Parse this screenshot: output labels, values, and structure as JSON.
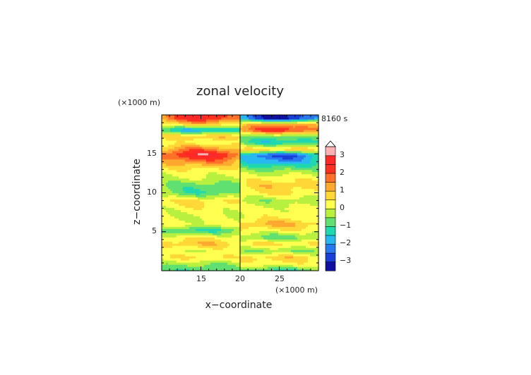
{
  "chart_data": {
    "type": "heatmap",
    "title": "zonal velocity",
    "xlabel": "x−coordinate",
    "ylabel": "z−coordinate",
    "x_unit": "(×1000 m)",
    "y_unit": "(×1000 m)",
    "time_label": "8160 s",
    "xlim": [
      10,
      30
    ],
    "ylim": [
      0,
      20
    ],
    "x_ticks": [
      "15",
      "20",
      "25"
    ],
    "y_ticks": [
      "5",
      "10",
      "15"
    ],
    "colorbar": {
      "levels": [
        -3.5,
        -3.0,
        -2.5,
        -2.0,
        -1.5,
        -1.0,
        -0.5,
        0.0,
        0.5,
        1.0,
        1.5,
        2.0,
        2.5,
        3.0,
        3.5
      ],
      "tick_labels": [
        "3",
        "2",
        "1",
        "0",
        "−1",
        "−2",
        "−3"
      ],
      "colors": [
        "#1010a0",
        "#1840d8",
        "#2878f0",
        "#28b8f0",
        "#20d8b0",
        "#60e070",
        "#b8f040",
        "#ffff50",
        "#ffd838",
        "#ffa830",
        "#ff7028",
        "#ff3020",
        "#ff2828",
        "#ffb0b0"
      ],
      "extend_max": true
    },
    "bands": [
      {
        "z": 19.6,
        "left": 2.6,
        "right": -3.2
      },
      {
        "z": 18.8,
        "left": 0.8,
        "right": 1.3
      },
      {
        "z": 18.1,
        "left": -2.0,
        "right": 2.6
      },
      {
        "z": 17.3,
        "left": 1.1,
        "right": -0.8
      },
      {
        "z": 16.5,
        "left": 0.2,
        "right": -1.5
      },
      {
        "z": 15.6,
        "left": 1.8,
        "right": 1.0
      },
      {
        "z": 14.9,
        "left": 3.0,
        "right": -2.8
      },
      {
        "z": 14.0,
        "left": 1.6,
        "right": -2.0
      },
      {
        "z": 13.0,
        "left": 0.4,
        "right": -0.6
      },
      {
        "z": 12.0,
        "left": 0.0,
        "right": 0.3
      },
      {
        "z": 11.0,
        "left": -0.8,
        "right": 0.9
      },
      {
        "z": 10.0,
        "left": -1.0,
        "right": 0.6
      },
      {
        "z": 9.0,
        "left": 0.7,
        "right": -0.4
      },
      {
        "z": 8.0,
        "left": 0.3,
        "right": 0.2
      },
      {
        "z": 7.0,
        "left": 0.0,
        "right": 0.3
      },
      {
        "z": 6.0,
        "left": 0.2,
        "right": 1.2
      },
      {
        "z": 5.2,
        "left": -1.2,
        "right": 0.4
      },
      {
        "z": 4.3,
        "left": 0.5,
        "right": -0.9
      },
      {
        "z": 3.5,
        "left": 1.0,
        "right": 0.8
      },
      {
        "z": 2.6,
        "left": 0.1,
        "right": -0.6
      },
      {
        "z": 1.7,
        "left": 0.6,
        "right": 0.9
      },
      {
        "z": 0.8,
        "left": -0.6,
        "right": 0.2
      },
      {
        "z": 0.2,
        "left": -1.0,
        "right": -1.0
      }
    ]
  }
}
